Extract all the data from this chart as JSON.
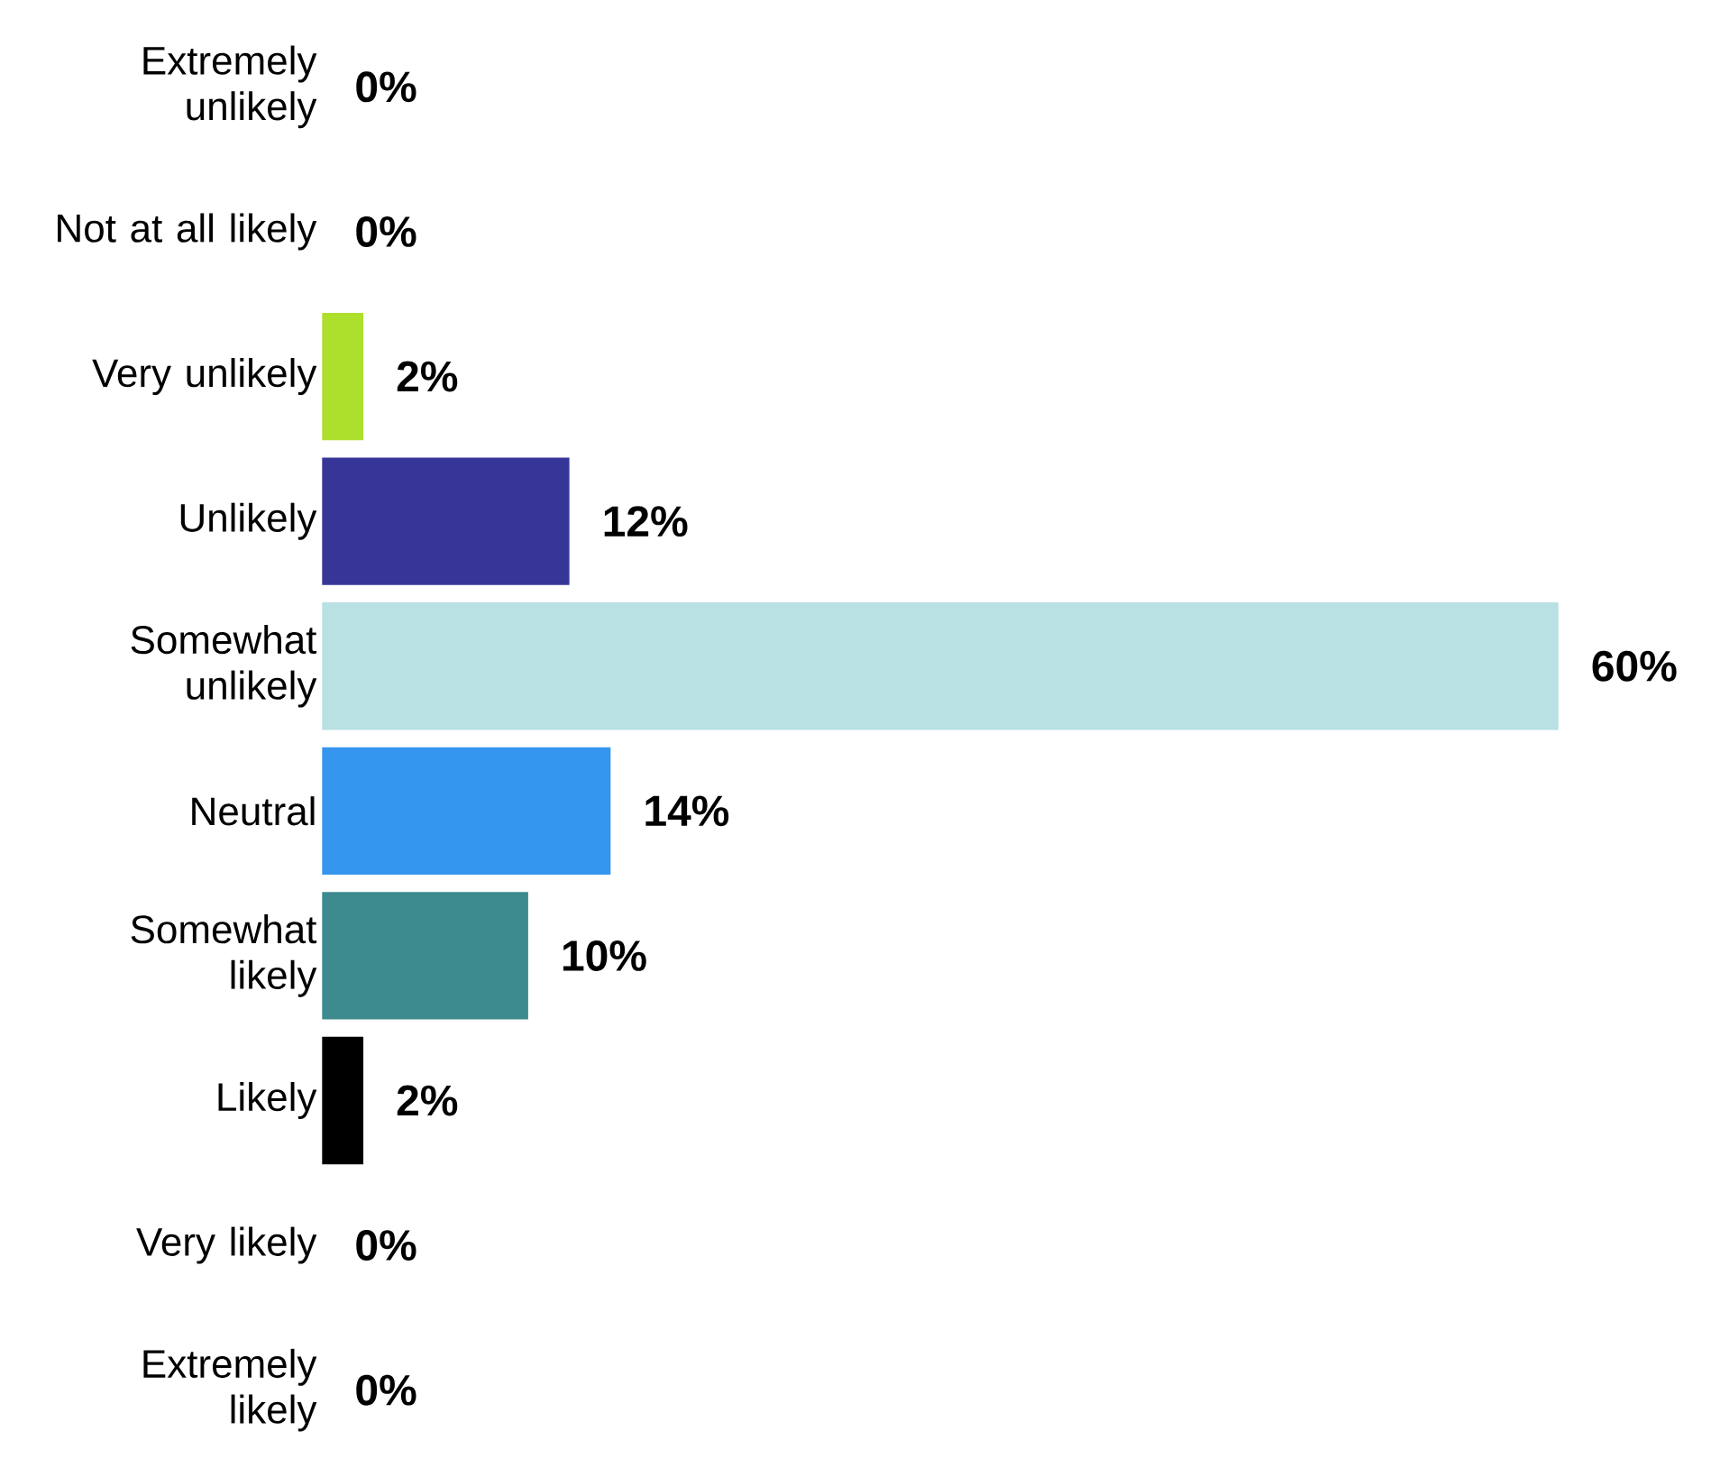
{
  "chart_data": {
    "type": "bar",
    "orientation": "horizontal",
    "tick_labels": "y",
    "categories": [
      "Extremely unlikely",
      "Not at all likely",
      "Very unlikely",
      "Unlikely",
      "Somewhat unlikely",
      "Neutral",
      "Somewhat likely",
      "Likely",
      "Very likely",
      "Extremely likely"
    ],
    "values": [
      0,
      0,
      2,
      12,
      60,
      14,
      10,
      2,
      0,
      0
    ],
    "value_labels": [
      "0%",
      "0%",
      "2%",
      "12%",
      "60%",
      "14%",
      "10%",
      "2%",
      "0%",
      "0%"
    ],
    "colors": [
      null,
      null,
      "#addf2d",
      "#363699",
      "#b9e0e2",
      "#3596f0",
      "#3d8a8f",
      "#000000",
      null,
      null
    ]
  }
}
